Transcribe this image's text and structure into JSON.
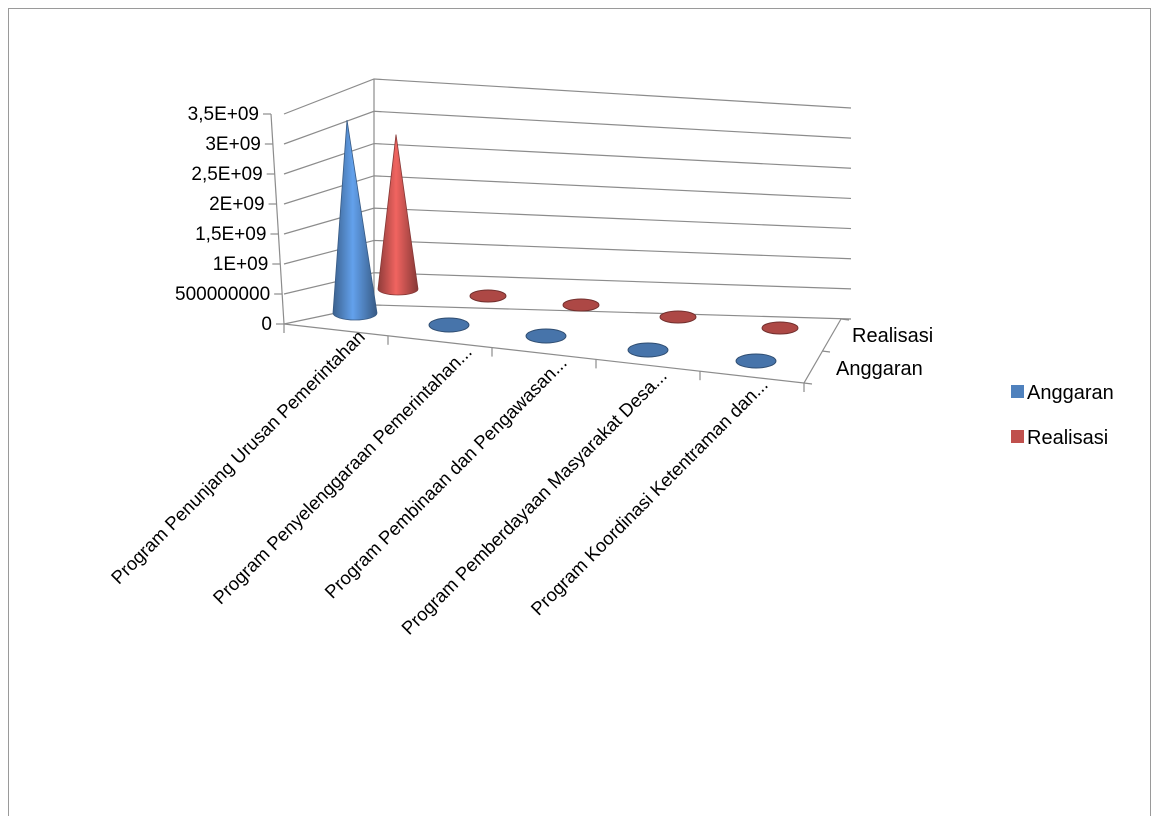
{
  "chart_data": {
    "type": "bar",
    "bar_shape": "cone",
    "projection": "3d",
    "categories": [
      "Program Penunjang Urusan Pemerintahan",
      "Program   Penyelenggaraan Pemerintahan...",
      "Program Pembinaan dan Pengawasan...",
      "Program Pemberdayaan Masyarakat Desa...",
      "Program Koordinasi Ketentraman dan..."
    ],
    "series": [
      {
        "name": "Anggaran",
        "color": "#4f81bd",
        "values": [
          3150000000,
          0,
          0,
          30000000,
          0
        ]
      },
      {
        "name": "Realisasi",
        "color": "#c0504d",
        "values": [
          2520000000,
          0,
          0,
          20000000,
          0
        ]
      }
    ],
    "y_ticks": [
      "0",
      "500000000",
      "1E+09",
      "1,5E+09",
      "2E+09",
      "2,5E+09",
      "3E+09",
      "3,5E+09"
    ],
    "ylim": [
      0,
      3500000000
    ],
    "depth_labels": [
      "Realisasi",
      "Anggaran"
    ],
    "legend": {
      "position": "right",
      "entries": [
        "Anggaran",
        "Realisasi"
      ]
    },
    "grid": true,
    "title": "",
    "xlabel": "",
    "ylabel": ""
  }
}
